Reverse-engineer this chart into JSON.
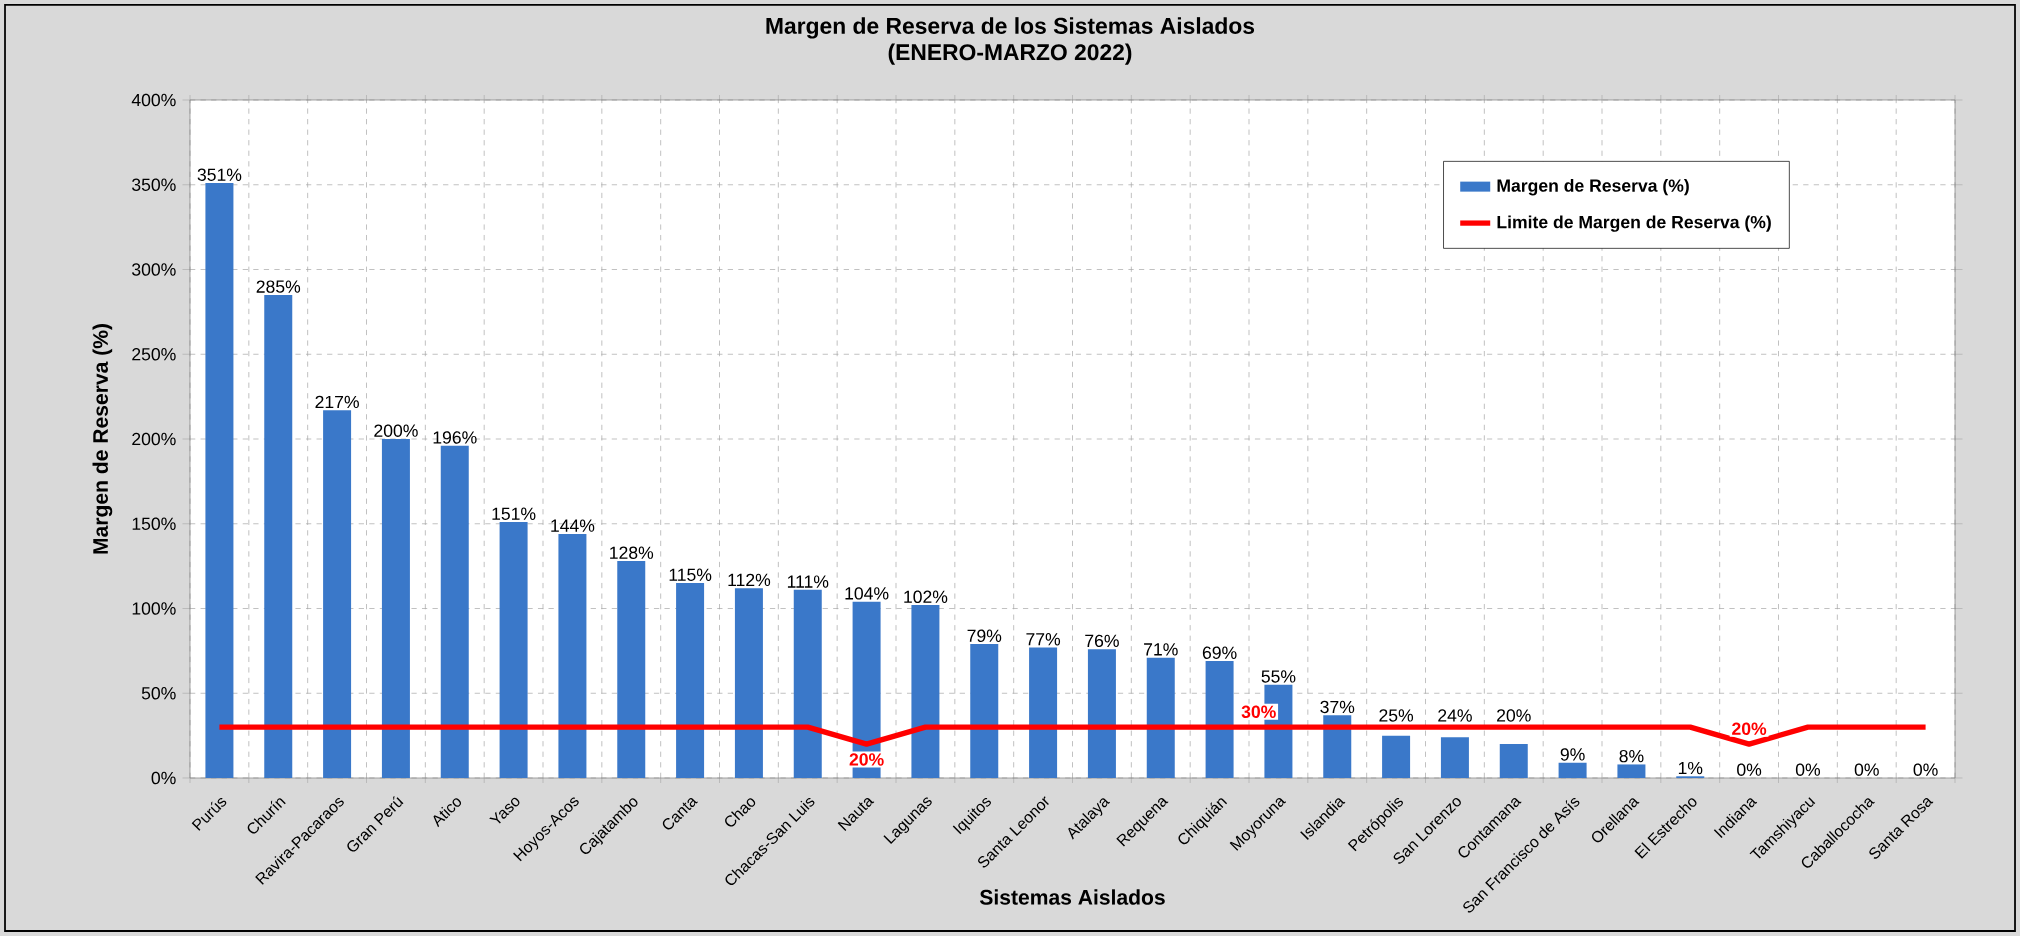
{
  "chart_data": {
    "type": "bar",
    "title": "Margen de Reserva de los Sistemas Aislados",
    "subtitle": "(ENERO-MARZO 2022)",
    "xlabel": "Sistemas Aislados",
    "ylabel": "Margen de Reserva (%)",
    "categories": [
      "Purús",
      "Churín",
      "Ravira-Pacaraos",
      "Gran Perú",
      "Atico",
      "Yaso",
      "Hoyos-Acos",
      "Cajatambo",
      "Canta",
      "Chao",
      "Chacas-San Luis",
      "Nauta",
      "Lagunas",
      "Iquitos",
      "Santa Leonor",
      "Atalaya",
      "Requena",
      "Chiquián",
      "Moyoruna",
      "Islandia",
      "Petrópolis",
      "San Lorenzo",
      "Contamana",
      "San Francisco de Asís",
      "Orellana",
      "El Estrecho",
      "Indiana",
      "Tamshiyacu",
      "Caballococha",
      "Santa Rosa"
    ],
    "series": [
      {
        "name": "Margen de Reserva (%)",
        "color": "#3a78c9",
        "values": [
          351,
          285,
          217,
          200,
          196,
          151,
          144,
          128,
          115,
          112,
          111,
          104,
          102,
          79,
          77,
          76,
          71,
          69,
          55,
          37,
          25,
          24,
          20,
          9,
          8,
          1,
          0,
          0,
          0,
          0
        ],
        "value_labels": [
          "351%",
          "285%",
          "217%",
          "200%",
          "196%",
          "151%",
          "144%",
          "128%",
          "115%",
          "112%",
          "111%",
          "104%",
          "102%",
          "79%",
          "77%",
          "76%",
          "71%",
          "69%",
          "55%",
          "37%",
          "25%",
          "24%",
          "20%",
          "9%",
          "8%",
          "1%",
          "0%",
          "0%",
          "0%",
          "0%"
        ]
      },
      {
        "name": "Limite de Margen de Reserva (%)",
        "type": "line",
        "color": "#ff0000",
        "values": [
          30,
          30,
          30,
          30,
          30,
          30,
          30,
          30,
          30,
          30,
          30,
          20,
          30,
          30,
          30,
          30,
          30,
          30,
          30,
          30,
          30,
          30,
          30,
          30,
          30,
          30,
          20,
          30,
          30,
          30
        ]
      }
    ],
    "ylim": [
      0,
      400
    ],
    "yticks": [
      {
        "value": 0,
        "label": "0%"
      },
      {
        "value": 50,
        "label": "50%"
      },
      {
        "value": 100,
        "label": "100%"
      },
      {
        "value": 150,
        "label": "150%"
      },
      {
        "value": 200,
        "label": "200%"
      },
      {
        "value": 250,
        "label": "250%"
      },
      {
        "value": 300,
        "label": "300%"
      },
      {
        "value": 350,
        "label": "350%"
      },
      {
        "value": 400,
        "label": "400%"
      }
    ],
    "grid": true,
    "legend": "top right",
    "marker": "none",
    "line_style": "solid",
    "annotations": [
      {
        "text": "20%",
        "x": "Nauta",
        "y": 20
      },
      {
        "text": "30%",
        "x": "Moyoruna",
        "y": 30
      },
      {
        "text": "20%",
        "x": "Indiana",
        "y": 20
      }
    ]
  }
}
